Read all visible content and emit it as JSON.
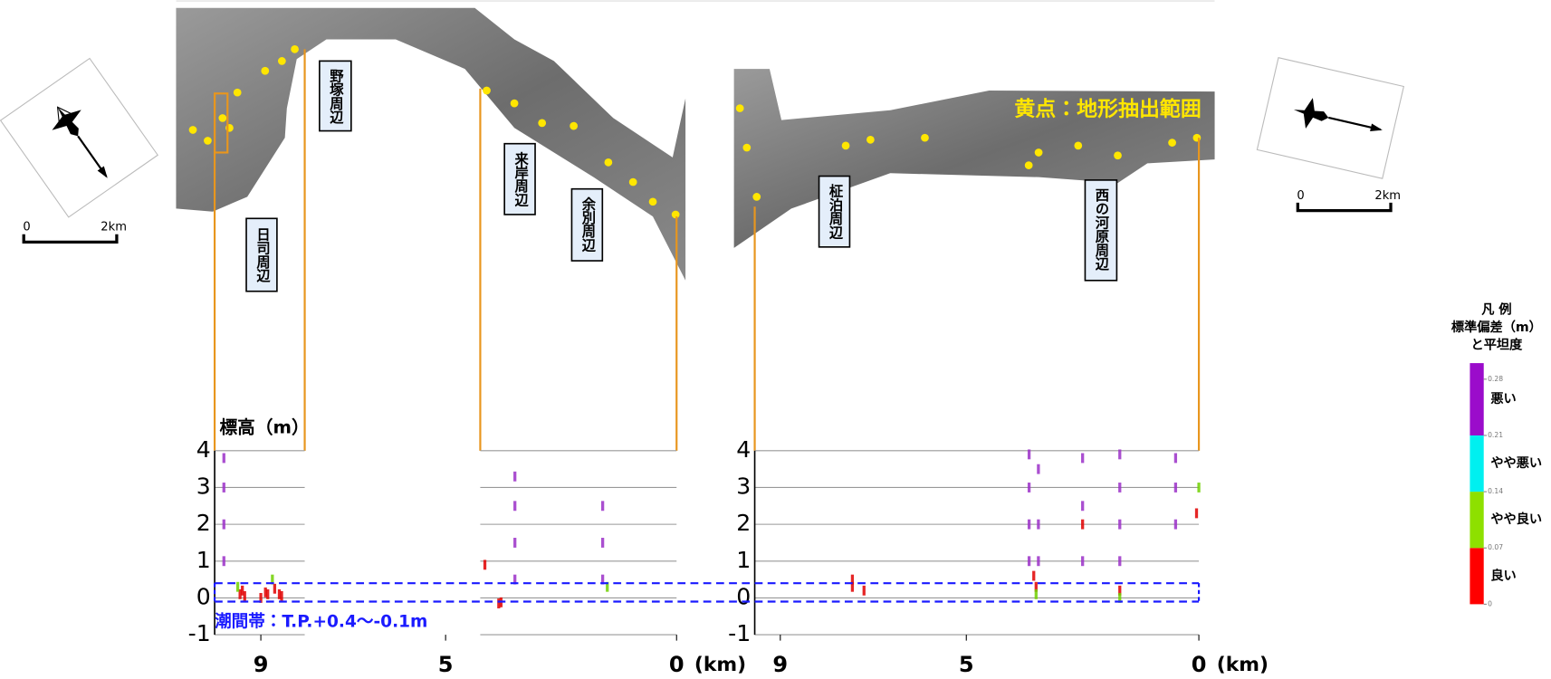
{
  "maps": {
    "labels": [
      "野塚周辺",
      "日司周辺",
      "来岸周辺",
      "余別周辺",
      "柾泊周辺",
      "西の河原周辺"
    ],
    "note": "黄点：地形抽出範囲",
    "scale_bars": [
      {
        "start": "0",
        "end": "2km"
      },
      {
        "start": "0",
        "end": "2km"
      }
    ]
  },
  "chart_data": [
    {
      "type": "scatter",
      "y_label": "標高（m）",
      "x_unit": "(km)",
      "xlim": [
        10,
        0
      ],
      "ylim": [
        -1,
        4
      ],
      "xticks": [
        9,
        5,
        0
      ],
      "yticks": [
        -1,
        0,
        1,
        2,
        3,
        4
      ],
      "grid": true,
      "sections": [
        [
          10,
          8.05
        ],
        [
          4.25,
          0
        ]
      ],
      "series": [
        {
          "color": "#e00000",
          "x": [
            9.45,
            9.4,
            9.35,
            9.0,
            8.9,
            8.85,
            8.7,
            8.6,
            8.55,
            4.15,
            3.85,
            3.8
          ],
          "values": [
            0.1,
            0.2,
            0.05,
            0.0,
            0.15,
            0.1,
            0.25,
            0.1,
            0.05,
            0.9,
            -0.15,
            -0.12
          ]
        },
        {
          "color": "#9b30c8",
          "x": [
            9.8,
            9.8,
            9.8,
            9.8,
            3.5,
            3.5,
            3.5,
            3.5,
            1.6,
            1.6,
            1.6
          ],
          "values": [
            1,
            2,
            3,
            3.8,
            0.5,
            1.5,
            2.5,
            3.3,
            0.5,
            1.5,
            2.5
          ]
        },
        {
          "color": "#70d000",
          "x": [
            9.5,
            8.75,
            1.5
          ],
          "values": [
            0.3,
            0.5,
            0.3
          ]
        }
      ]
    },
    {
      "type": "scatter",
      "x_unit": "(km)",
      "xlim": [
        9.55,
        0
      ],
      "ylim": [
        -1,
        4
      ],
      "xticks": [
        9,
        5,
        0
      ],
      "yticks": [
        -1,
        0,
        1,
        2,
        3,
        4
      ],
      "grid": true,
      "sections": [
        [
          9.55,
          0
        ]
      ],
      "series": [
        {
          "color": "#e00000",
          "x": [
            7.45,
            7.45,
            7.2,
            3.55,
            3.5,
            1.7,
            2.5,
            0.05
          ],
          "values": [
            0.3,
            0.5,
            0.2,
            0.6,
            0.3,
            0.2,
            2.0,
            2.3
          ]
        },
        {
          "color": "#9b30c8",
          "x": [
            3.65,
            3.65,
            3.65,
            3.65,
            3.45,
            3.45,
            3.45,
            2.5,
            2.5,
            2.5,
            1.7,
            1.7,
            1.7,
            1.7,
            0.5,
            0.5,
            0.5
          ],
          "values": [
            1,
            2,
            3,
            3.9,
            1,
            2,
            3.5,
            1,
            2.5,
            3.8,
            1,
            2,
            3,
            3.9,
            2,
            3,
            3.8
          ]
        },
        {
          "color": "#70d000",
          "x": [
            3.5,
            1.7,
            0
          ],
          "values": [
            0.1,
            0.0,
            3.0
          ]
        }
      ]
    }
  ],
  "tidal_zone": {
    "label": "潮間帯：T.P.+0.4～-0.1m",
    "top": 0.4,
    "bottom": -0.1
  },
  "legend": {
    "title": "凡 例",
    "subtitle": [
      "標準偏差（m）",
      "と平坦度"
    ],
    "lim": [
      0,
      0.3
    ],
    "ticks": [
      0,
      0.07,
      0.14,
      0.21,
      0.28
    ],
    "classes": [
      {
        "label": "良い",
        "color": "#ff0000",
        "from": 0,
        "to": 0.07
      },
      {
        "label": "やや良い",
        "color": "#8ee000",
        "from": 0.07,
        "to": 0.14
      },
      {
        "label": "やや悪い",
        "color": "#00f0f0",
        "from": 0.14,
        "to": 0.21
      },
      {
        "label": "悪い",
        "color": "#9b0ccb",
        "from": 0.21,
        "to": 0.3
      }
    ]
  }
}
